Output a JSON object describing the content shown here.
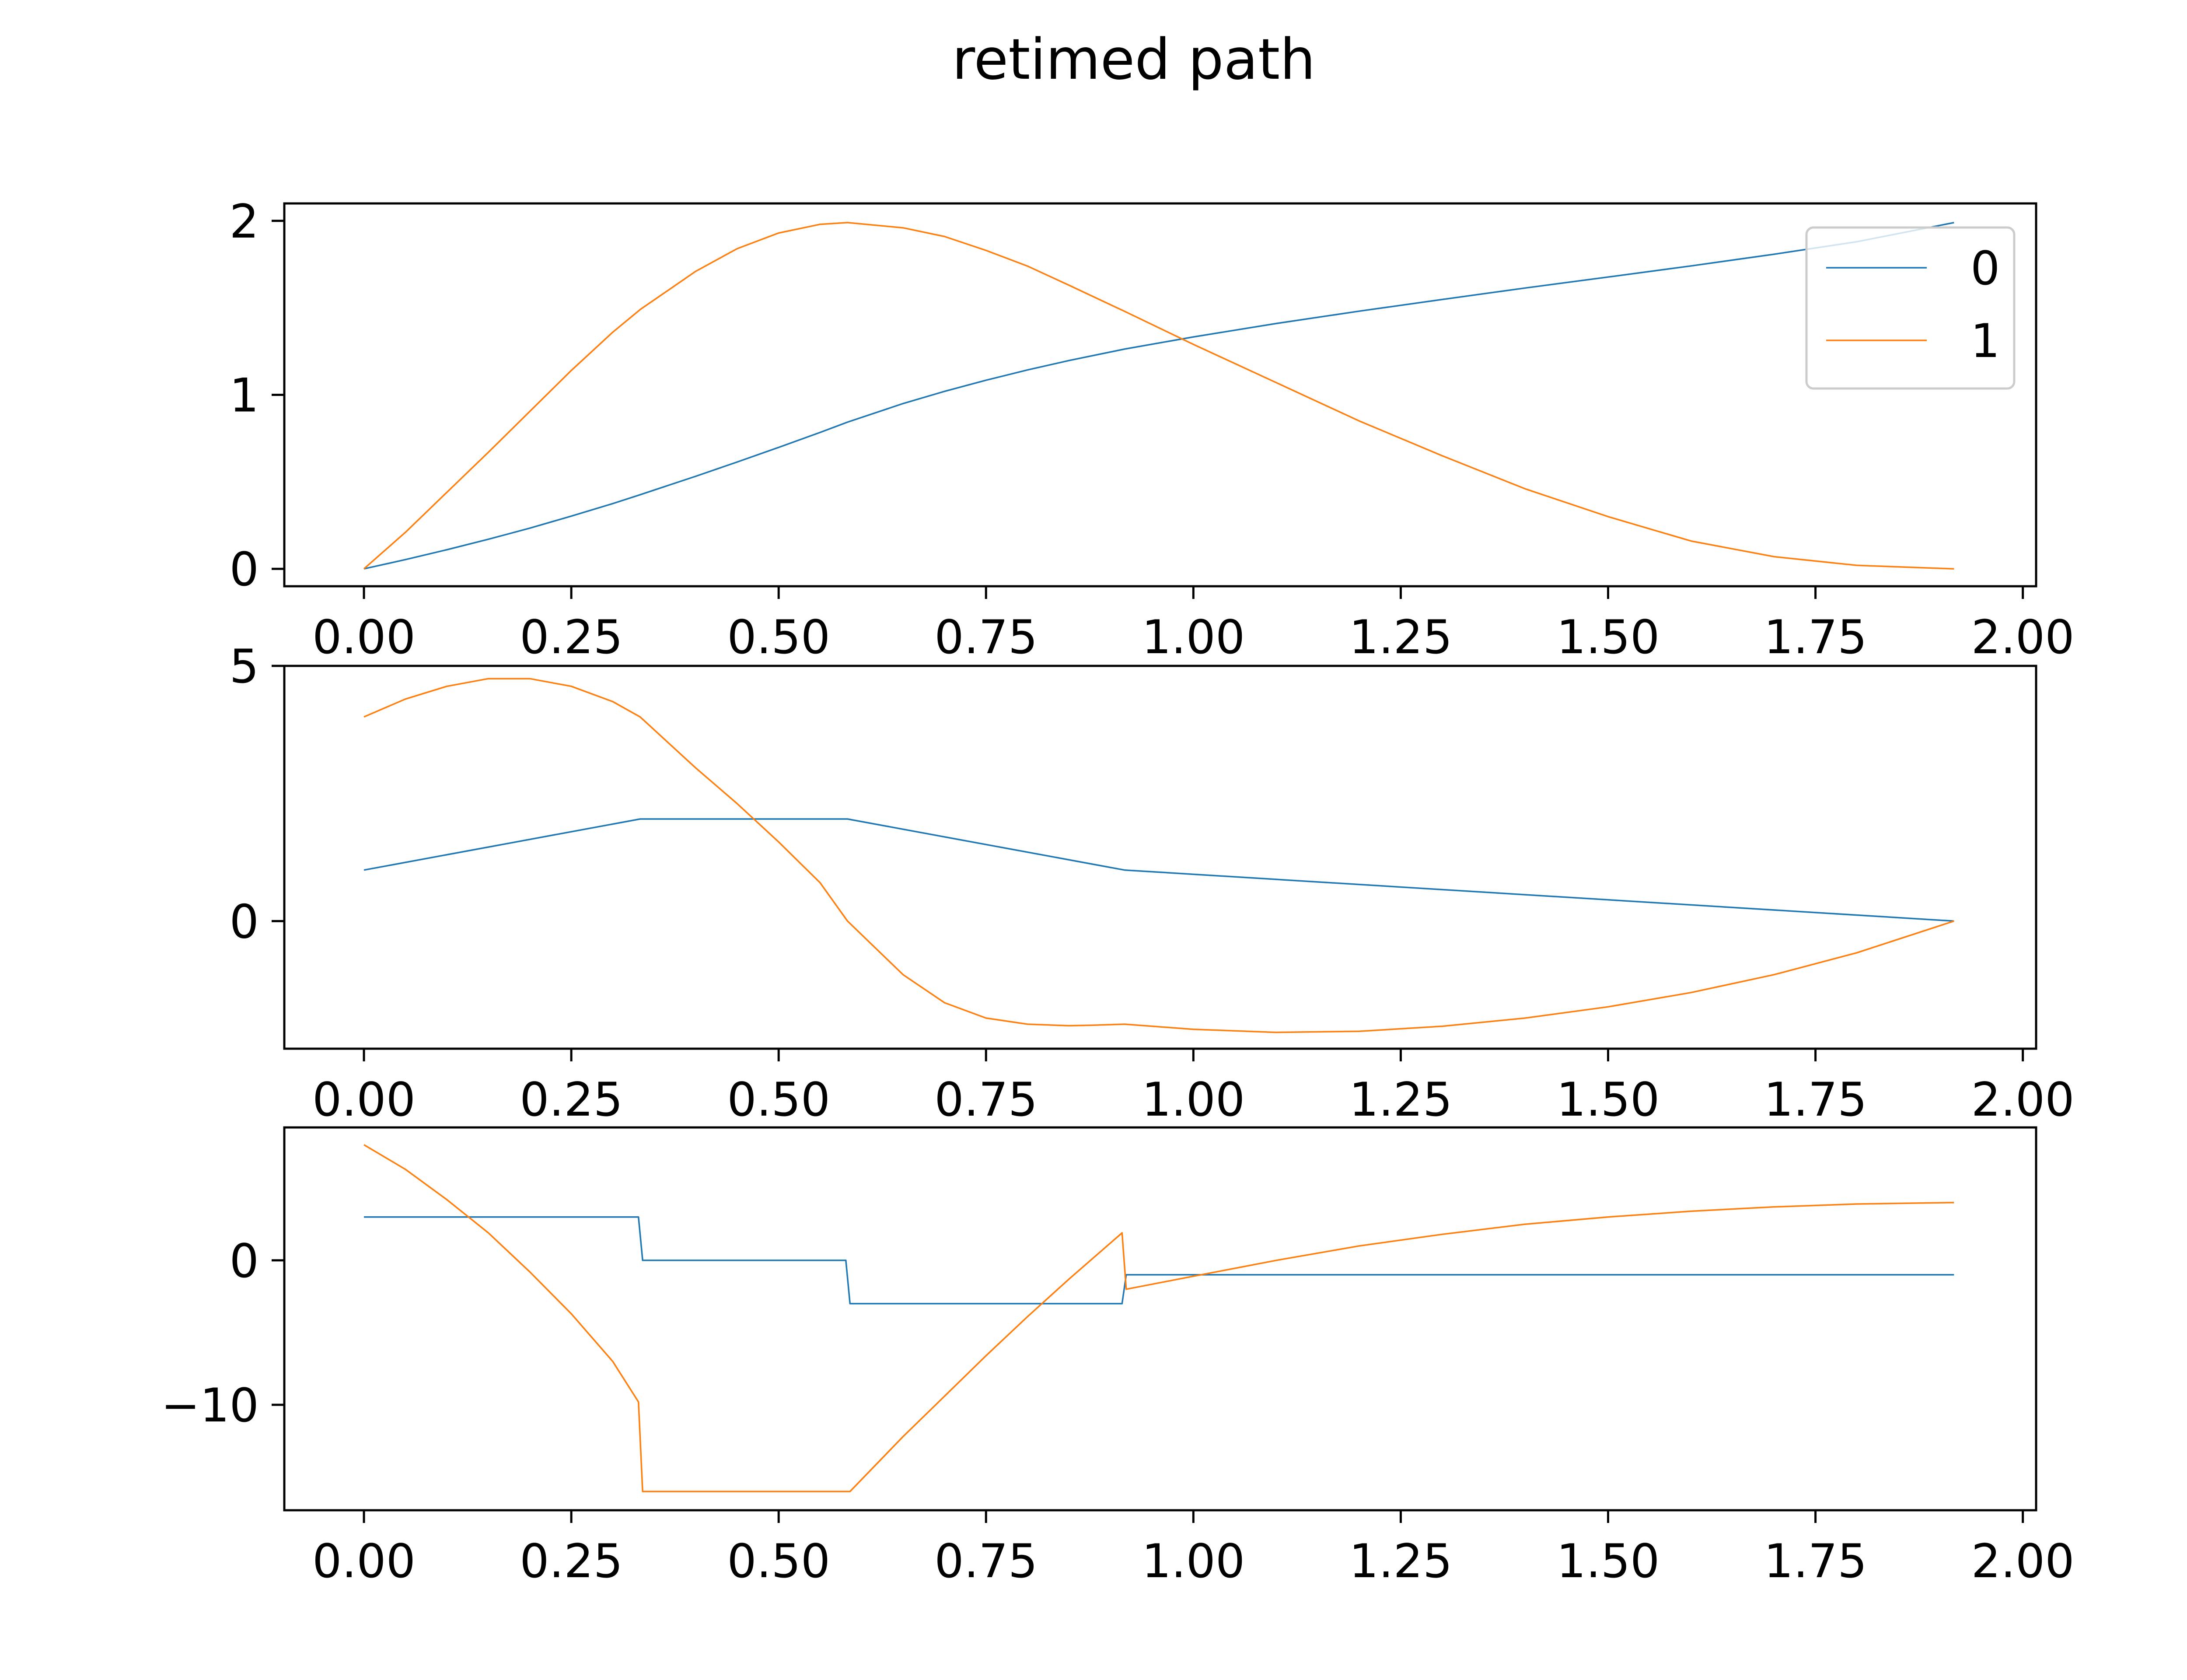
{
  "figure": {
    "title": "retimed path"
  },
  "chart_data": [
    {
      "type": "line",
      "title": "",
      "xlabel": "",
      "ylabel": "",
      "xlim": [
        -0.096,
        2.016
      ],
      "ylim": [
        -0.1,
        2.1
      ],
      "xticks": [
        0.0,
        0.25,
        0.5,
        0.75,
        1.0,
        1.25,
        1.5,
        1.75,
        2.0
      ],
      "xtick_labels": [
        "0.00",
        "0.25",
        "0.50",
        "0.75",
        "1.00",
        "1.25",
        "1.50",
        "1.75",
        "2.00"
      ],
      "yticks": [
        0,
        1,
        2
      ],
      "ytick_labels": [
        "0",
        "1",
        "2"
      ],
      "grid": false,
      "legend": {
        "position": "top-right",
        "entries": [
          "0",
          "1"
        ]
      },
      "series": [
        {
          "name": "0",
          "color": "#1f77b4",
          "x": [
            0.0,
            0.05,
            0.1,
            0.15,
            0.2,
            0.25,
            0.3,
            0.333,
            0.4,
            0.45,
            0.5,
            0.55,
            0.583,
            0.65,
            0.7,
            0.75,
            0.8,
            0.85,
            0.917,
            1.0,
            1.1,
            1.2,
            1.3,
            1.4,
            1.5,
            1.6,
            1.7,
            1.8,
            1.917
          ],
          "values": [
            0.0,
            0.053,
            0.11,
            0.17,
            0.234,
            0.303,
            0.375,
            0.426,
            0.532,
            0.614,
            0.698,
            0.784,
            0.843,
            0.95,
            1.02,
            1.084,
            1.143,
            1.197,
            1.263,
            1.333,
            1.41,
            1.481,
            1.548,
            1.614,
            1.677,
            1.741,
            1.808,
            1.88,
            1.99
          ]
        },
        {
          "name": "1",
          "color": "#ff7f0e",
          "x": [
            0.0,
            0.05,
            0.1,
            0.15,
            0.2,
            0.25,
            0.3,
            0.333,
            0.4,
            0.45,
            0.5,
            0.55,
            0.583,
            0.65,
            0.7,
            0.75,
            0.8,
            0.85,
            0.917,
            1.0,
            1.1,
            1.2,
            1.3,
            1.4,
            1.5,
            1.6,
            1.7,
            1.8,
            1.917
          ],
          "values": [
            0.0,
            0.21,
            0.44,
            0.67,
            0.905,
            1.14,
            1.36,
            1.49,
            1.71,
            1.84,
            1.93,
            1.98,
            1.99,
            1.96,
            1.91,
            1.83,
            1.74,
            1.63,
            1.48,
            1.29,
            1.07,
            0.85,
            0.65,
            0.46,
            0.3,
            0.16,
            0.07,
            0.02,
            0.0
          ]
        }
      ]
    },
    {
      "type": "line",
      "title": "",
      "xlabel": "",
      "ylabel": "",
      "xlim": [
        -0.096,
        2.016
      ],
      "ylim": [
        -2.5,
        5.0
      ],
      "xticks": [
        0.0,
        0.25,
        0.5,
        0.75,
        1.0,
        1.25,
        1.5,
        1.75,
        2.0
      ],
      "xtick_labels": [
        "0.00",
        "0.25",
        "0.50",
        "0.75",
        "1.00",
        "1.25",
        "1.50",
        "1.75",
        "2.00"
      ],
      "yticks": [
        0,
        5
      ],
      "ytick_labels": [
        "0",
        "5"
      ],
      "grid": false,
      "series": [
        {
          "name": "",
          "color": "#1f77b4",
          "x": [
            0.0,
            0.333,
            0.583,
            0.917,
            1.917
          ],
          "values": [
            1.0,
            2.0,
            2.0,
            1.0,
            0.0
          ]
        },
        {
          "name": "",
          "color": "#ff7f0e",
          "x": [
            0.0,
            0.05,
            0.1,
            0.15,
            0.2,
            0.25,
            0.3,
            0.333,
            0.4,
            0.45,
            0.5,
            0.55,
            0.583,
            0.65,
            0.7,
            0.75,
            0.8,
            0.85,
            0.88,
            0.917,
            1.0,
            1.1,
            1.2,
            1.3,
            1.4,
            1.5,
            1.6,
            1.7,
            1.8,
            1.917
          ],
          "values": [
            4.0,
            4.35,
            4.6,
            4.75,
            4.75,
            4.6,
            4.3,
            4.0,
            3.0,
            2.3,
            1.55,
            0.75,
            0.0,
            -1.05,
            -1.6,
            -1.9,
            -2.02,
            -2.05,
            -2.04,
            -2.02,
            -2.12,
            -2.18,
            -2.16,
            -2.06,
            -1.9,
            -1.68,
            -1.4,
            -1.05,
            -0.62,
            0.0
          ]
        }
      ]
    },
    {
      "type": "line",
      "title": "",
      "xlabel": "",
      "ylabel": "",
      "xlim": [
        -0.096,
        2.016
      ],
      "ylim": [
        -17.3,
        9.2
      ],
      "xticks": [
        0.0,
        0.25,
        0.5,
        0.75,
        1.0,
        1.25,
        1.5,
        1.75,
        2.0
      ],
      "xtick_labels": [
        "0.00",
        "0.25",
        "0.50",
        "0.75",
        "1.00",
        "1.25",
        "1.50",
        "1.75",
        "2.00"
      ],
      "yticks": [
        -10,
        0
      ],
      "ytick_labels": [
        "−10",
        "0"
      ],
      "grid": false,
      "series": [
        {
          "name": "",
          "color": "#1f77b4",
          "x": [
            0.0,
            0.331,
            0.336,
            0.581,
            0.586,
            0.914,
            0.919,
            1.917
          ],
          "values": [
            3.0,
            3.0,
            0.0,
            0.0,
            -3.0,
            -3.0,
            -1.0,
            -1.0
          ]
        },
        {
          "name": "",
          "color": "#ff7f0e",
          "x": [
            0.0,
            0.05,
            0.1,
            0.15,
            0.2,
            0.25,
            0.3,
            0.331,
            0.336,
            0.581,
            0.586,
            0.65,
            0.7,
            0.75,
            0.8,
            0.85,
            0.914,
            0.919,
            1.0,
            1.1,
            1.2,
            1.3,
            1.4,
            1.5,
            1.6,
            1.7,
            1.8,
            1.917
          ],
          "values": [
            8.0,
            6.3,
            4.2,
            1.9,
            -0.8,
            -3.7,
            -7.0,
            -9.8,
            -16.0,
            -16.0,
            -16.0,
            -12.2,
            -9.4,
            -6.6,
            -3.9,
            -1.3,
            1.9,
            -2.0,
            -1.1,
            0.0,
            1.0,
            1.8,
            2.5,
            3.0,
            3.4,
            3.7,
            3.9,
            4.0
          ]
        }
      ]
    }
  ]
}
